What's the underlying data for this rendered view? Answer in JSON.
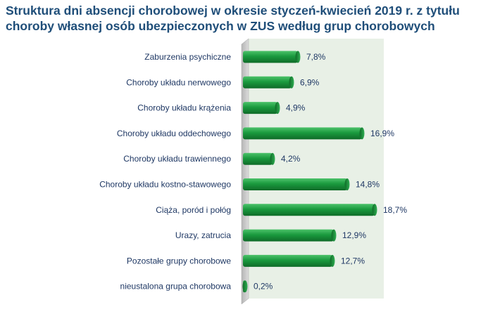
{
  "chart_data": {
    "type": "bar",
    "orientation": "horizontal",
    "title_lines": [
      "Struktura dni absencji chorobowej w okresie styczeń-kwiecień 2019 r. z tytułu",
      "choroby własnej osób ubezpieczonych w ZUS według grup chorobowych"
    ],
    "categories": [
      "Zaburzenia psychiczne",
      "Choroby układu nerwowego",
      "Choroby układu krążenia",
      "Choroby układu oddechowego",
      "Choroby układu trawiennego",
      "Choroby układu kostno-stawowego",
      "Ciąża, poród i połóg",
      "Urazy, zatrucia",
      "Pozostałe grupy chorobowe",
      "nieustalona grupa chorobowa"
    ],
    "values": [
      7.8,
      6.9,
      4.9,
      16.9,
      4.2,
      14.8,
      18.7,
      12.9,
      12.7,
      0.2
    ],
    "value_labels": [
      "7,8%",
      "6,9%",
      "4,9%",
      "16,9%",
      "4,2%",
      "14,8%",
      "18,7%",
      "12,9%",
      "12,7%",
      "0,2%"
    ],
    "xlim": [
      0,
      20
    ],
    "grid": false,
    "legend": "none",
    "colors": {
      "bar": "#1a9a3e",
      "bar_dark": "#0f6b28",
      "bar_light": "#4cc26a",
      "wall": "#e8f0e6",
      "wall_side": "#c8c8c8",
      "text": "#1f3864",
      "title": "#1f4e79"
    }
  }
}
